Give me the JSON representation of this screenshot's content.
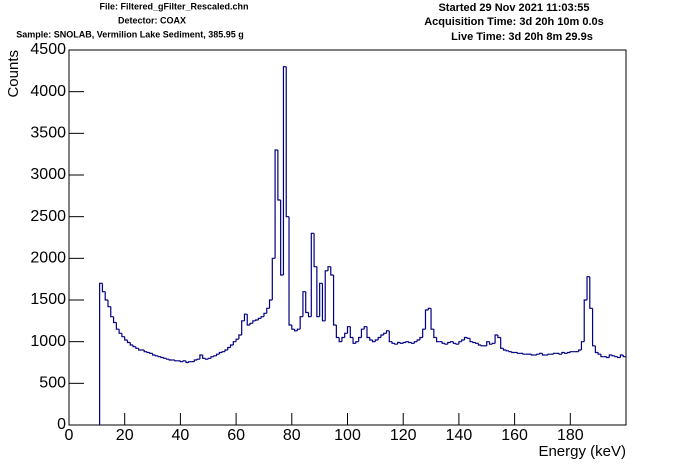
{
  "chart_data": {
    "type": "histogram",
    "info_left": [
      "File: Filtered_gFilter_Rescaled.chn",
      "Detector: COAX",
      "Sample: SNOLAB, Vermilion Lake Sediment, 385.95 g"
    ],
    "info_right": [
      "Started 29 Nov 2021 11:03:55",
      "Acquisition Time: 3d 20h 10m 0.0s",
      "Live Time: 3d 20h 8m 29.9s"
    ],
    "x_label": "Energy (keV)",
    "y_label": "Counts",
    "color": "#000080",
    "xlim": [
      0,
      200
    ],
    "ylim": [
      0,
      4500
    ],
    "xticks": [
      0,
      20,
      40,
      60,
      80,
      100,
      120,
      140,
      160,
      180
    ],
    "yticks": [
      0,
      500,
      1000,
      1500,
      2000,
      2500,
      3000,
      3500,
      4000,
      4500
    ],
    "bins": [
      11,
      12,
      13,
      14,
      15,
      16,
      17,
      18,
      19,
      20,
      21,
      22,
      23,
      24,
      25,
      26,
      27,
      28,
      29,
      30,
      31,
      32,
      33,
      34,
      35,
      36,
      37,
      38,
      39,
      40,
      41,
      42,
      43,
      44,
      45,
      46,
      47,
      48,
      49,
      50,
      51,
      52,
      53,
      54,
      55,
      56,
      57,
      58,
      59,
      60,
      61,
      62,
      63,
      64,
      65,
      66,
      67,
      68,
      69,
      70,
      71,
      72,
      73,
      74,
      75,
      76,
      77,
      78,
      79,
      80,
      81,
      82,
      83,
      84,
      85,
      86,
      87,
      88,
      89,
      90,
      91,
      92,
      93,
      94,
      95,
      96,
      97,
      98,
      99,
      100,
      101,
      102,
      103,
      104,
      105,
      106,
      107,
      108,
      109,
      110,
      111,
      112,
      113,
      114,
      115,
      116,
      117,
      118,
      119,
      120,
      121,
      122,
      123,
      124,
      125,
      126,
      127,
      128,
      129,
      130,
      131,
      132,
      133,
      134,
      135,
      136,
      137,
      138,
      139,
      140,
      141,
      142,
      143,
      144,
      145,
      146,
      147,
      148,
      149,
      150,
      151,
      152,
      153,
      154,
      155,
      156,
      157,
      158,
      159,
      160,
      161,
      162,
      163,
      164,
      165,
      166,
      167,
      168,
      169,
      170,
      171,
      172,
      173,
      174,
      175,
      176,
      177,
      178,
      179,
      180,
      181,
      182,
      183,
      184,
      185,
      186,
      187,
      188,
      189,
      190,
      191,
      192,
      193,
      194,
      195,
      196,
      197,
      198,
      199,
      200
    ],
    "values": [
      1700,
      1600,
      1500,
      1420,
      1300,
      1230,
      1150,
      1100,
      1060,
      1020,
      990,
      960,
      940,
      920,
      900,
      900,
      880,
      870,
      860,
      840,
      830,
      820,
      810,
      800,
      790,
      780,
      780,
      770,
      770,
      760,
      770,
      750,
      760,
      760,
      780,
      790,
      840,
      800,
      790,
      800,
      820,
      830,
      850,
      870,
      880,
      900,
      930,
      960,
      1000,
      1030,
      1080,
      1250,
      1330,
      1200,
      1220,
      1250,
      1260,
      1280,
      1300,
      1340,
      1400,
      1500,
      2000,
      3300,
      2700,
      1800,
      4300,
      2500,
      1200,
      1150,
      1130,
      1150,
      1300,
      1600,
      1350,
      1300,
      2300,
      1900,
      1300,
      1700,
      1250,
      1850,
      1900,
      1800,
      1200,
      1050,
      1000,
      1050,
      1100,
      1180,
      1050,
      980,
      1000,
      1050,
      1150,
      1180,
      1050,
      1020,
      1000,
      1020,
      1050,
      1080,
      1100,
      1130,
      1000,
      980,
      970,
      990,
      980,
      990,
      1000,
      990,
      980,
      1000,
      1020,
      1050,
      1150,
      1380,
      1400,
      1150,
      1050,
      1000,
      1000,
      980,
      970,
      990,
      1000,
      980,
      970,
      1000,
      1020,
      1050,
      1040,
      1000,
      990,
      980,
      960,
      950,
      950,
      1000,
      970,
      980,
      1080,
      1050,
      920,
      900,
      890,
      880,
      870,
      870,
      860,
      860,
      850,
      850,
      850,
      840,
      840,
      850,
      860,
      840,
      840,
      850,
      850,
      860,
      860,
      850,
      870,
      860,
      870,
      880,
      880,
      880,
      900,
      1000,
      1500,
      1780,
      1400,
      950,
      870,
      850,
      820,
      820,
      810,
      840,
      830,
      820,
      810,
      840,
      820
    ]
  }
}
